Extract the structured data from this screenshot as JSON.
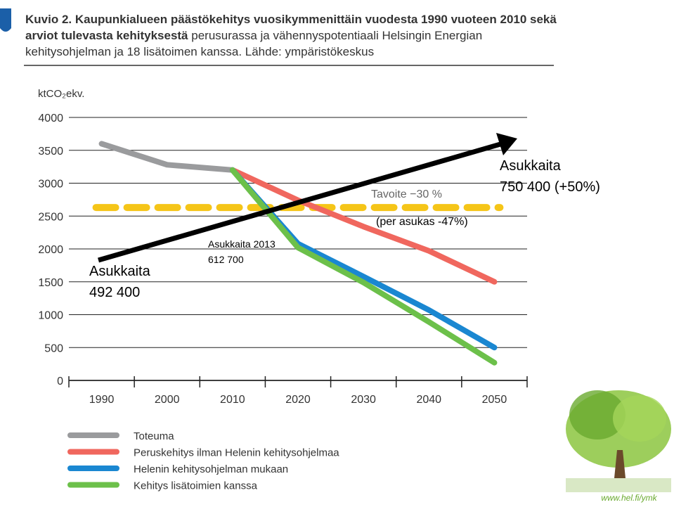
{
  "chart_data": {
    "type": "line",
    "title": "Kuvio 2. Kaupunkialueen päästökehitys vuosikymmenittäin vuodesta 1990 vuoteen 2010 sekä arviot tulevasta kehityksestä",
    "subtitle": "perusurassa ja vähennyspotentiaali Helsingin Energian kehitysohjelman ja 18 lisätoimen kanssa. Lähde: ympäristökeskus",
    "ylabel": "ktCO₂ekv.",
    "categories": [
      "1990",
      "2000",
      "2010",
      "2020",
      "2030",
      "2040",
      "2050"
    ],
    "series": [
      {
        "name": "Toteuma",
        "color": "#9a9b9d",
        "values": [
          3600,
          3280,
          3200,
          null,
          null,
          null,
          null
        ]
      },
      {
        "name": "Peruskehitys ilman Helenin kehitysohjelmaa",
        "color": "#f0675e",
        "values": [
          null,
          null,
          3200,
          2740,
          2340,
          1970,
          1500
        ]
      },
      {
        "name": "Helenin kehitysohjelman mukaan",
        "color": "#1a87d1",
        "values": [
          null,
          null,
          3200,
          2080,
          1580,
          1070,
          500
        ]
      },
      {
        "name": "Kehitys lisätoimien kanssa",
        "color": "#6cc04a",
        "values": [
          null,
          null,
          3200,
          2020,
          1490,
          890,
          270
        ]
      }
    ],
    "reference_line": {
      "value": 2630,
      "color": "#f5c518"
    },
    "ylim": [
      0,
      4000
    ],
    "yticks": [
      0,
      500,
      1000,
      1500,
      2000,
      2500,
      3000,
      3500,
      4000
    ],
    "grid": true,
    "legend": "bottom",
    "annotations": [
      {
        "lines": [
          "Asukkaita",
          "492 400"
        ]
      },
      {
        "lines": [
          "Asukkaita",
          "750 400 (+50%)"
        ]
      },
      {
        "lines": [
          "Asukkaita 2013",
          "612 700"
        ]
      },
      {
        "lines": [
          "Tavoite −30 %"
        ]
      },
      {
        "lines": [
          "(per asukas -47%)"
        ]
      }
    ],
    "footer": "www.hel.fi/ymk"
  }
}
